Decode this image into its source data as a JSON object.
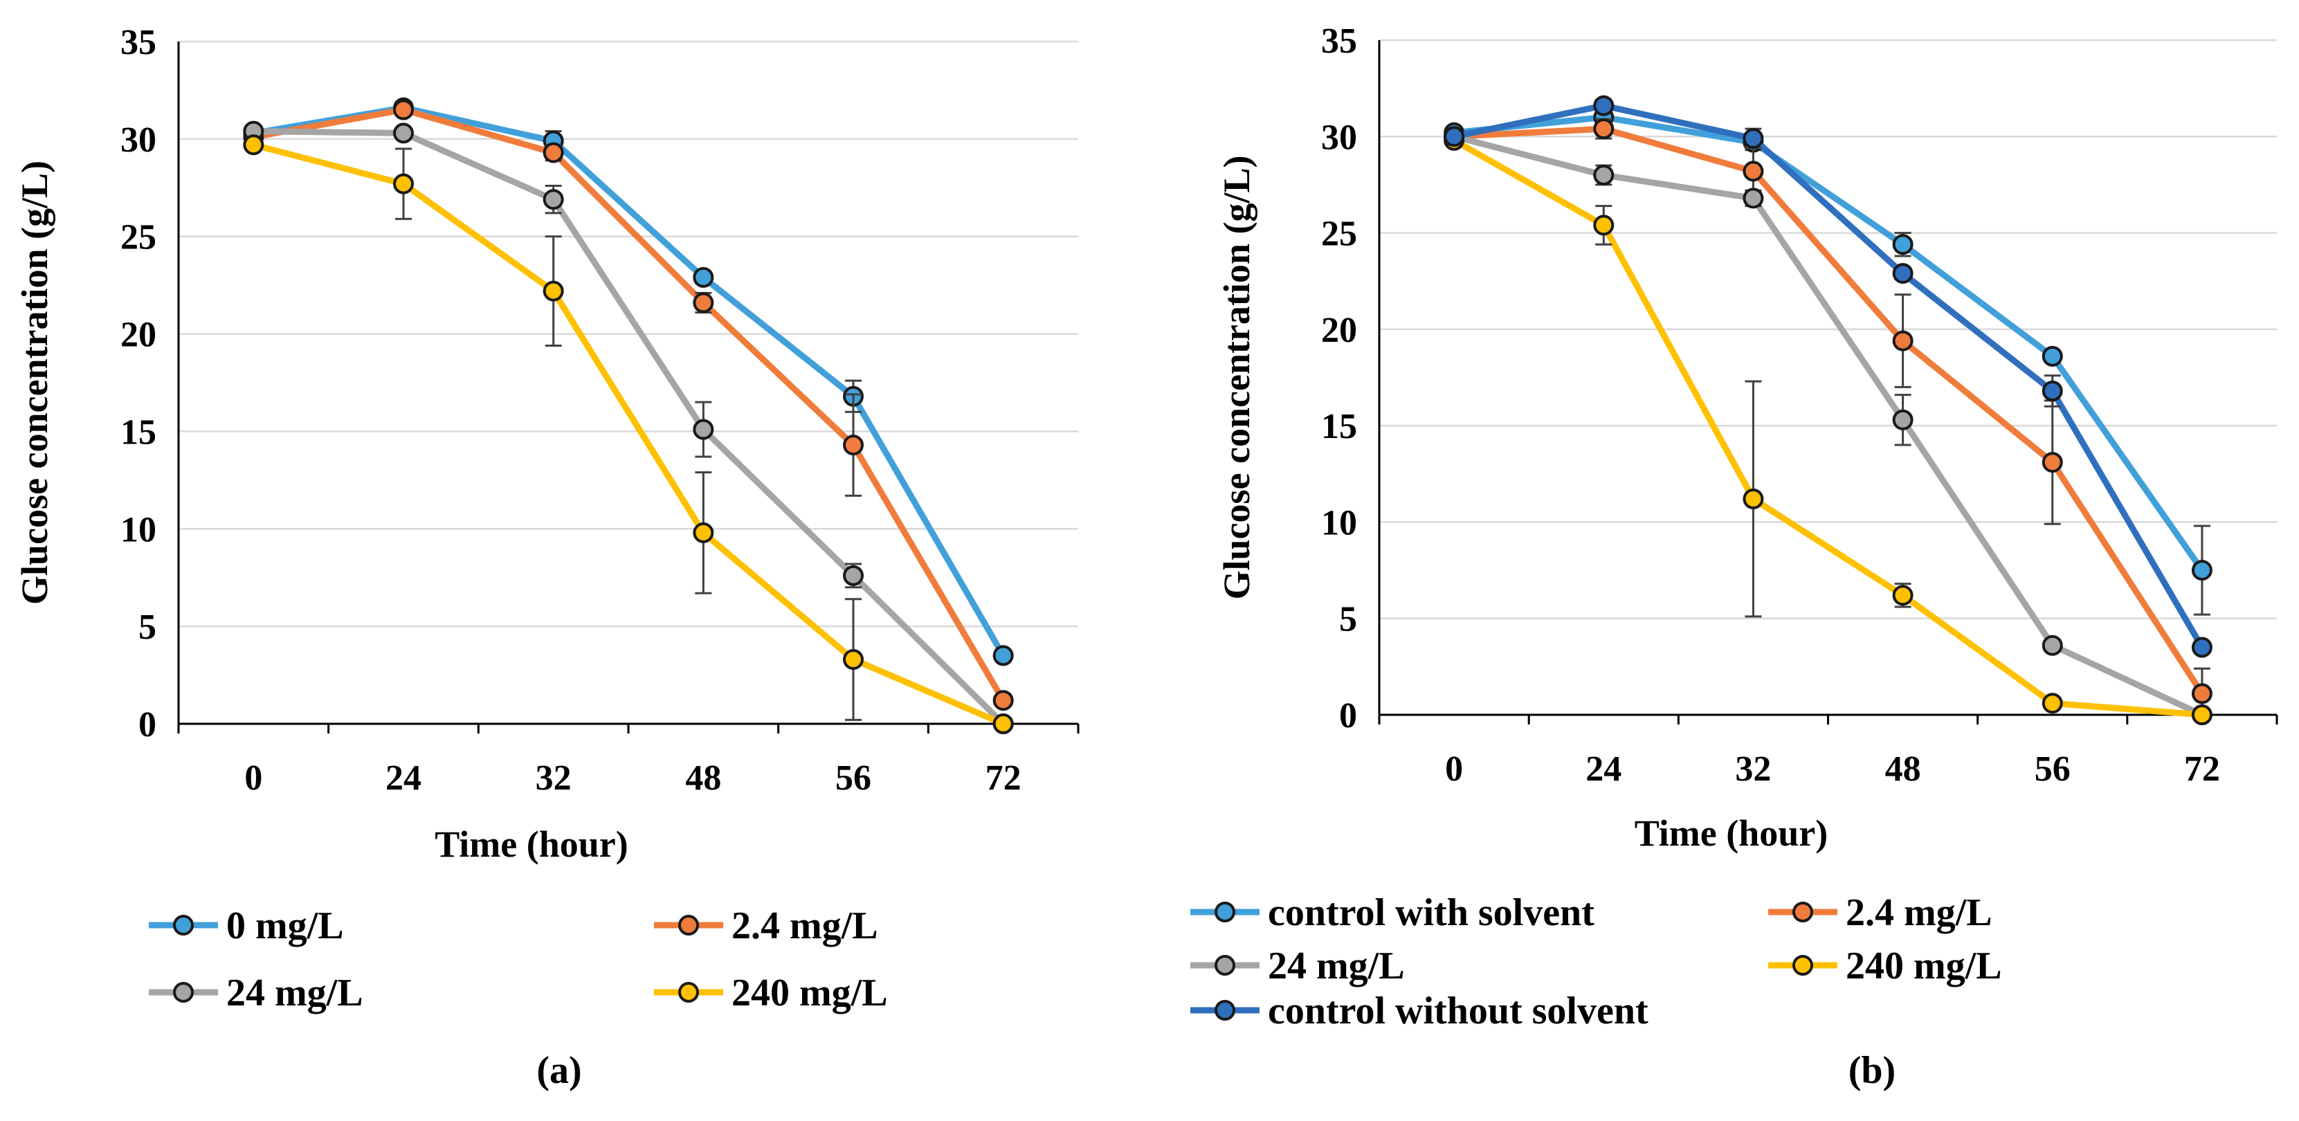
{
  "chart_data": [
    {
      "type": "line",
      "panel_label": "(a)",
      "xlabel": "Time (hour)",
      "ylabel": "Glucose concentration (g/L)",
      "categories": [
        "0",
        "24",
        "32",
        "48",
        "56",
        "72"
      ],
      "yticks": [
        "0",
        "5",
        "10",
        "15",
        "20",
        "25",
        "30",
        "35"
      ],
      "ylim": [
        0,
        35
      ],
      "grid": "horizontal",
      "legend_position": "bottom",
      "series": [
        {
          "name": "0 mg/L",
          "color": "#41A0DA",
          "values": [
            30.3,
            31.6,
            29.9,
            22.9,
            16.8,
            3.5
          ],
          "errors": [
            0.3,
            0.3,
            0.5,
            0.3,
            0.8,
            0.2
          ]
        },
        {
          "name": "2.4 mg/L",
          "color": "#F07C3C",
          "values": [
            30.1,
            31.5,
            29.3,
            21.6,
            14.3,
            1.2
          ],
          "errors": [
            0.2,
            0.3,
            0.4,
            0.5,
            2.6,
            0.2
          ]
        },
        {
          "name": "24 mg/L",
          "color": "#A5A5A5",
          "values": [
            30.4,
            30.3,
            26.9,
            15.1,
            7.6,
            0.0
          ],
          "errors": [
            0.2,
            0.2,
            0.7,
            1.4,
            0.6,
            0.1
          ]
        },
        {
          "name": "240 mg/L",
          "color": "#FFC000",
          "values": [
            29.7,
            27.7,
            22.2,
            9.8,
            3.3,
            0.0
          ],
          "errors": [
            0.2,
            1.8,
            2.8,
            3.1,
            3.1,
            0.1
          ]
        }
      ]
    },
    {
      "type": "line",
      "panel_label": "(b)",
      "xlabel": "Time (hour)",
      "ylabel": "Glucose concentration (g/L)",
      "categories": [
        "0",
        "24",
        "32",
        "48",
        "56",
        "72"
      ],
      "yticks": [
        "0",
        "5",
        "10",
        "15",
        "20",
        "25",
        "30",
        "35"
      ],
      "ylim": [
        0,
        35
      ],
      "grid": "horizontal",
      "legend_position": "bottom",
      "series": [
        {
          "name": "control with solvent",
          "color": "#41A0DA",
          "values": [
            30.2,
            31.0,
            29.7,
            24.4,
            18.6,
            7.5
          ],
          "errors": [
            0.2,
            0.3,
            0.4,
            0.6,
            0.3,
            2.3
          ]
        },
        {
          "name": "2.4 mg/L",
          "color": "#F07C3C",
          "values": [
            30.0,
            30.4,
            28.2,
            19.4,
            13.1,
            1.1
          ],
          "errors": [
            0.2,
            0.5,
            1.3,
            2.4,
            3.2,
            1.3
          ]
        },
        {
          "name": "24 mg/L",
          "color": "#A5A5A5",
          "values": [
            30.0,
            28.0,
            26.8,
            15.3,
            3.6,
            0.0
          ],
          "errors": [
            0.2,
            0.5,
            0.4,
            1.3,
            0.3,
            0.1
          ]
        },
        {
          "name": "240 mg/L",
          "color": "#FFC000",
          "values": [
            29.8,
            25.4,
            11.2,
            6.2,
            0.6,
            0.0
          ],
          "errors": [
            0.2,
            1.0,
            6.1,
            0.6,
            0.2,
            0.1
          ]
        },
        {
          "name": "control without solvent",
          "color": "#2F6FBE",
          "values": [
            30.0,
            31.6,
            29.9,
            22.9,
            16.8,
            3.5
          ],
          "errors": [
            0.2,
            0.3,
            0.5,
            0.3,
            0.8,
            0.2
          ]
        }
      ]
    }
  ]
}
